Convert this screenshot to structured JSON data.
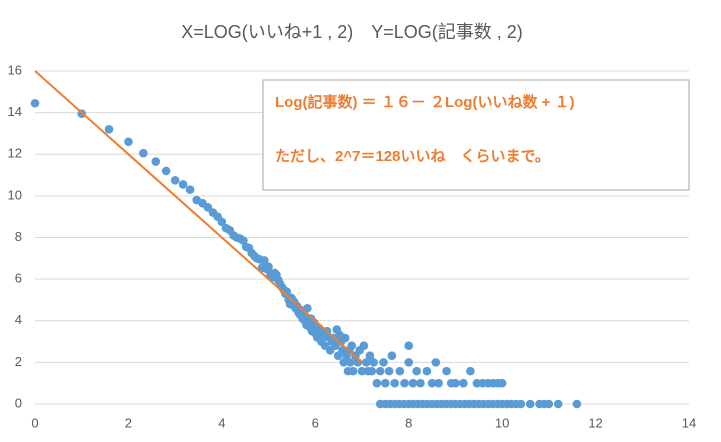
{
  "chart_data": {
    "type": "scatter",
    "title": "X=LOG(いいね+1 , 2)　Y=LOG(記事数 , 2)",
    "color": "#5b9bd5",
    "x": [
      0,
      1,
      1.585,
      2,
      2.32,
      2.585,
      2.807,
      3,
      3.17,
      3.32,
      3.46,
      3.585,
      3.7,
      3.81,
      3.91,
      4,
      4.09,
      4.17,
      4.25,
      4.32,
      4.39,
      4.46,
      4.52,
      4.58,
      4.64,
      4.7,
      4.75,
      4.81,
      4.86,
      4.91,
      4.95,
      5,
      5.04,
      5.09,
      5.13,
      5.17,
      5.21,
      5.25,
      5.29,
      5.32,
      5.36,
      5.39,
      5.43,
      5.46,
      5.49,
      5.52,
      5.55,
      5.58,
      5.61,
      5.64,
      5.67,
      5.7,
      5.73,
      5.75,
      5.78,
      5.81,
      5.83,
      5.86,
      5.88,
      5.91,
      5.93,
      5.95,
      5.98,
      6,
      6.04,
      6.09,
      6.13,
      6.17,
      6.21,
      6.25,
      6.29,
      6.32,
      6.36,
      6.39,
      6.43,
      6.46,
      6.49,
      6.52,
      6.55,
      6.58,
      6.61,
      6.64,
      6.67,
      6.7,
      6.73,
      6.75,
      6.78,
      6.81,
      6.86,
      6.91,
      6.95,
      7,
      7.04,
      7.09,
      7.13,
      7.17,
      7.21,
      7.25,
      7.32,
      7.39,
      7.46,
      7.5,
      7.58,
      7.64,
      7.7,
      7.81,
      7.91,
      8,
      8,
      8.09,
      8.17,
      8.25,
      8.39,
      8.5,
      8.58,
      8.64,
      8.81,
      8.91,
      9,
      9.17,
      9.32,
      9.46,
      9.58,
      9.7,
      9.81,
      9.91,
      10,
      7.39,
      7.5,
      7.6,
      7.7,
      7.8,
      7.9,
      8,
      8.1,
      8.2,
      8.3,
      8.4,
      8.5,
      8.6,
      8.7,
      8.8,
      8.9,
      9,
      9.1,
      9.2,
      9.3,
      9.4,
      9.5,
      9.6,
      9.7,
      9.8,
      9.9,
      10,
      10.1,
      10.2,
      10.3,
      10.4,
      10.6,
      10.8,
      10.9,
      11,
      11.2,
      11.6
    ],
    "values": [
      14.45,
      13.95,
      13.2,
      12.6,
      12.05,
      11.65,
      11.2,
      10.75,
      10.55,
      10.3,
      9.8,
      9.65,
      9.45,
      9.2,
      9,
      8.75,
      8.45,
      8.35,
      8.1,
      8,
      7.95,
      7.85,
      7.55,
      7.5,
      7.25,
      7.1,
      7,
      6.95,
      6.55,
      6.9,
      6.5,
      6.6,
      6.25,
      6.1,
      6.3,
      6.2,
      5.95,
      5.75,
      5.6,
      5.5,
      5.3,
      5.4,
      5,
      4.8,
      5.1,
      4.75,
      4.9,
      4.6,
      4.7,
      4.4,
      4.3,
      4.5,
      4.1,
      4.25,
      4,
      3.8,
      4.6,
      3.9,
      3.7,
      4.1,
      3.5,
      3.6,
      3.9,
      3.4,
      3.2,
      3.6,
      3,
      3.3,
      2.8,
      3.5,
      3.2,
      2.58,
      3,
      3.17,
      2.8,
      3.58,
      2.32,
      3.32,
      3,
      2.58,
      2,
      3.17,
      2.32,
      1.58,
      2.58,
      2,
      2.8,
      1.58,
      2.32,
      2,
      2.58,
      1.58,
      2.8,
      2,
      1.58,
      2.32,
      1.58,
      2,
      1,
      1.58,
      2,
      1,
      1.58,
      2.32,
      1,
      1.58,
      1,
      2,
      2.8,
      1,
      1.58,
      1,
      1.58,
      1,
      2,
      1,
      1.58,
      1,
      1,
      1,
      1.58,
      1,
      1,
      1,
      1,
      1,
      1,
      0,
      0,
      0,
      0,
      0,
      0,
      0,
      0,
      0,
      0,
      0,
      0,
      0,
      0,
      0,
      0,
      0,
      0,
      0,
      0,
      0,
      0,
      0,
      0,
      0,
      0,
      0,
      0,
      0,
      0,
      0,
      0,
      0,
      0,
      0,
      0,
      0
    ],
    "trendline": {
      "x": [
        0,
        7
      ],
      "values": [
        16,
        2
      ],
      "color": "#ed7d31"
    },
    "xlim": [
      0,
      14
    ],
    "xticks": [
      0,
      2,
      4,
      6,
      8,
      10,
      12,
      14
    ],
    "ylim": [
      0,
      16
    ],
    "yticks": [
      0,
      2,
      4,
      6,
      8,
      10,
      12,
      14,
      16
    ],
    "grid": true,
    "annotations": [
      "Log(記事数) ＝ １６－ ２Log(いいね数 + １)",
      "ただし、2^7＝128いいね　くらいまで。"
    ]
  }
}
